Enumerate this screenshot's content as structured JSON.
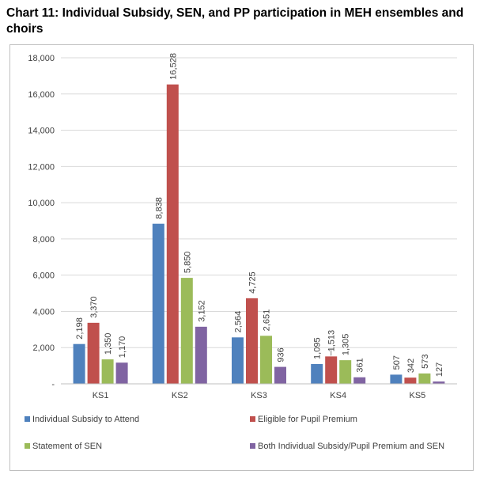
{
  "title": "Chart 11: Individual Subsidy, SEN, and PP participation in MEH ensembles and choirs",
  "chart_data": {
    "type": "bar",
    "title": "Chart 11: Individual Subsidy, SEN, and PP participation in MEH ensembles and choirs",
    "categories": [
      "KS1",
      "KS2",
      "KS3",
      "KS4",
      "KS5"
    ],
    "series": [
      {
        "name": "Individual Subsidy to Attend",
        "color": "#4f81bd",
        "values": [
          2198,
          8838,
          2564,
          1095,
          507
        ],
        "labels": [
          "2,198",
          "8,838",
          "2,564",
          "1,095",
          "507"
        ]
      },
      {
        "name": "Eligible for Pupil Premium",
        "color": "#c0504d",
        "values": [
          3370,
          16528,
          4725,
          1513,
          342
        ],
        "labels": [
          "3,370",
          "16,528",
          "4,725",
          "1,513",
          "342"
        ]
      },
      {
        "name": "Statement of SEN",
        "color": "#9bbb59",
        "values": [
          1350,
          5850,
          2651,
          1305,
          573
        ],
        "labels": [
          "1,350",
          "5,850",
          "2,651",
          "1,305",
          "573"
        ]
      },
      {
        "name": "Both Individual Subsidy/Pupil Premium and SEN",
        "color": "#8064a2",
        "values": [
          1170,
          3152,
          936,
          361,
          127
        ],
        "labels": [
          "1,170",
          "3,152",
          "936",
          "361",
          "127"
        ]
      }
    ],
    "ylim": [
      0,
      18000
    ],
    "yticks": [
      0,
      2000,
      4000,
      6000,
      8000,
      10000,
      12000,
      14000,
      16000,
      18000
    ],
    "ytick_labels": [
      "-",
      "2,000",
      "4,000",
      "6,000",
      "8,000",
      "10,000",
      "12,000",
      "14,000",
      "16,000",
      "18,000"
    ],
    "grid": true,
    "legend": "bottom",
    "gridline_color": "#d9d9d9",
    "axis_color": "#bfbfbf"
  }
}
